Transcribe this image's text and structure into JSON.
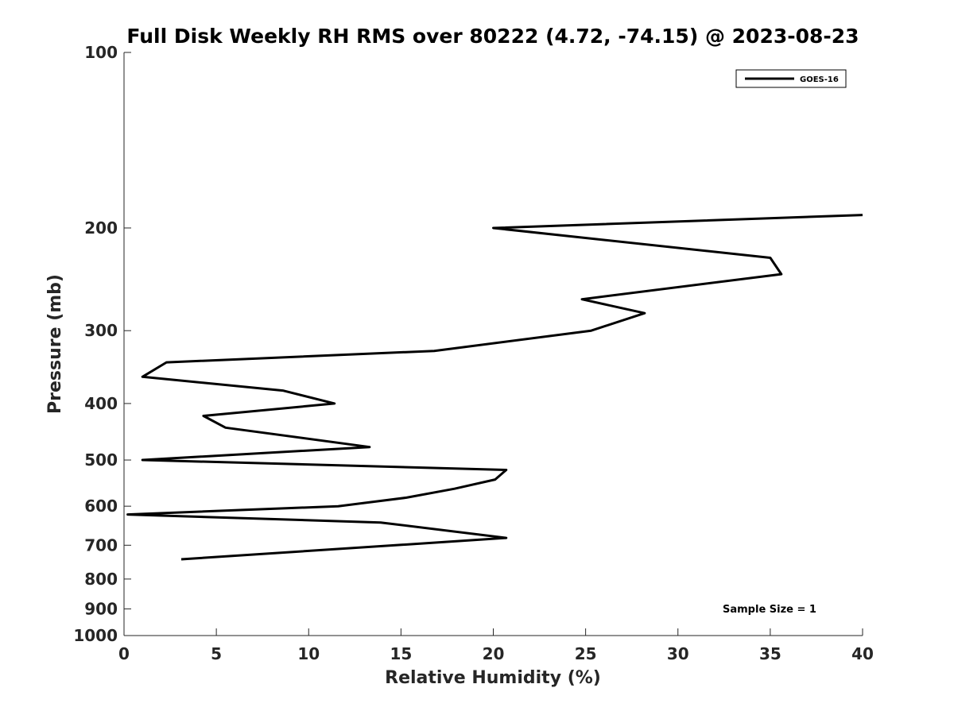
{
  "chart_data": {
    "type": "line",
    "title": "Full Disk Weekly RH RMS over 80222 (4.72, -74.15) @ 2023-08-23",
    "xlabel": "Relative Humidity (%)",
    "ylabel": "Pressure (mb)",
    "xlim": [
      0,
      40
    ],
    "ylim": [
      100,
      1000
    ],
    "yscale": "log",
    "yreversed": true,
    "grid": false,
    "x_ticks": [
      0,
      5,
      10,
      15,
      20,
      25,
      30,
      35,
      40
    ],
    "y_ticks": [
      100,
      200,
      300,
      400,
      500,
      600,
      700,
      800,
      900,
      1000
    ],
    "legend_position": "top-right",
    "annotation": "Sample Size = 1",
    "series": [
      {
        "name": "GOES-16",
        "color": "#000000",
        "rh": [
          40.0,
          20.0,
          35.0,
          35.6,
          24.8,
          28.2,
          25.3,
          16.8,
          2.3,
          1.0,
          8.6,
          11.4,
          4.3,
          5.5,
          13.3,
          1.0,
          20.7,
          20.1,
          17.9,
          15.3,
          11.6,
          0.2,
          13.9,
          20.7,
          3.1
        ],
        "pressure": [
          190,
          200,
          225,
          240,
          265,
          280,
          300,
          325,
          340,
          360,
          380,
          400,
          420,
          440,
          475,
          500,
          520,
          540,
          560,
          580,
          600,
          620,
          640,
          680,
          740
        ]
      }
    ]
  }
}
